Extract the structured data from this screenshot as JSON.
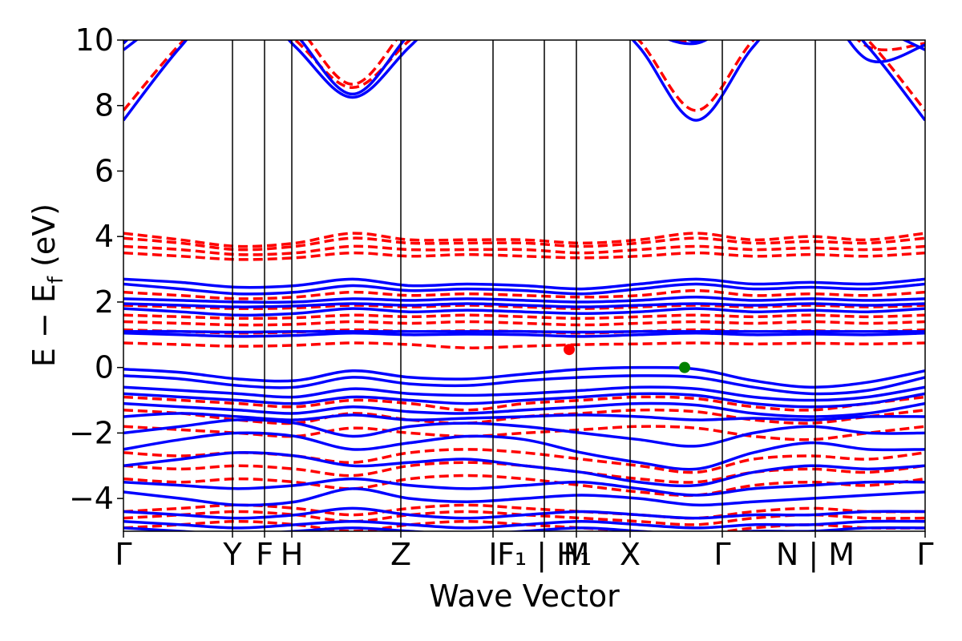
{
  "chart_data": {
    "type": "line",
    "title": "",
    "xlabel": "Wave Vector",
    "ylabel": "E − E_f (eV)",
    "ylabel_main": "E − E",
    "ylabel_sub": "f",
    "ylabel_unit": " (eV)",
    "ylim": [
      -5,
      10
    ],
    "yticks": [
      -4,
      -2,
      0,
      2,
      4,
      6,
      8,
      10
    ],
    "ytick_labels": [
      "−4",
      "−2",
      "0",
      "2",
      "4",
      "6",
      "8",
      "10"
    ],
    "grid": false,
    "legend": "none",
    "kpoints": [
      {
        "label": "Γ",
        "x": 0.0
      },
      {
        "label": "Y",
        "x": 0.136
      },
      {
        "label": "F",
        "x": 0.176
      },
      {
        "label": "H",
        "x": 0.21
      },
      {
        "label": "Z",
        "x": 0.346
      },
      {
        "label": "I",
        "x": 0.461
      },
      {
        "label": "F₁ | H₁",
        "x": 0.525
      },
      {
        "label": "M",
        "x": 0.565
      },
      {
        "label": "X",
        "x": 0.632
      },
      {
        "label": "Γ",
        "x": 0.747
      },
      {
        "label": "N | M",
        "x": 0.863
      },
      {
        "label": "Γ",
        "x": 1.0
      }
    ],
    "series": [
      {
        "color": "#0000ff",
        "style": "solid",
        "bands": [
          {
            "y": [
              7.55,
              9.8,
              11.5,
              9.8,
              8.25,
              9.8,
              11.5,
              12.0,
              11.5,
              9.8,
              7.55,
              9.8,
              11.5,
              9.8,
              7.55
            ]
          },
          {
            "y": [
              9.7,
              11.0,
              12.0,
              10.2,
              8.35,
              10.2,
              12.0,
              12.0,
              12.0,
              10.5,
              9.9,
              11.0,
              11.0,
              10.5,
              9.7
            ]
          },
          {
            "y": [
              9.9,
              11.5,
              12.0,
              11.0,
              10.2,
              11.5,
              12.0,
              12.0,
              12.0,
              11.5,
              9.95,
              11.5,
              11.5,
              9.4,
              9.85
            ]
          },
          {
            "y": [
              2.7,
              2.6,
              2.45,
              2.5,
              2.7,
              2.5,
              2.55,
              2.5,
              2.4,
              2.55,
              2.7,
              2.55,
              2.6,
              2.55,
              2.7
            ]
          },
          {
            "y": [
              2.55,
              2.4,
              2.25,
              2.3,
              2.5,
              2.35,
              2.4,
              2.35,
              2.25,
              2.4,
              2.55,
              2.4,
              2.45,
              2.4,
              2.55
            ]
          },
          {
            "y": [
              2.1,
              2.05,
              2.0,
              2.0,
              2.1,
              2.05,
              2.1,
              2.05,
              2.0,
              2.05,
              2.15,
              2.05,
              2.1,
              2.05,
              2.1
            ]
          },
          {
            "y": [
              1.95,
              1.9,
              1.85,
              1.88,
              1.95,
              1.9,
              1.95,
              1.9,
              1.85,
              1.9,
              1.95,
              1.9,
              1.95,
              1.9,
              1.95
            ]
          },
          {
            "y": [
              1.8,
              1.7,
              1.6,
              1.65,
              1.8,
              1.7,
              1.75,
              1.7,
              1.65,
              1.7,
              1.8,
              1.7,
              1.75,
              1.7,
              1.8
            ]
          },
          {
            "y": [
              1.1,
              1.1,
              1.08,
              1.1,
              1.1,
              1.1,
              1.1,
              1.1,
              1.08,
              1.1,
              1.1,
              1.1,
              1.1,
              1.1,
              1.1
            ]
          },
          {
            "y": [
              1.05,
              1.0,
              0.95,
              0.98,
              1.05,
              1.0,
              1.02,
              1.0,
              0.95,
              1.0,
              1.05,
              1.0,
              1.02,
              1.0,
              1.05
            ]
          },
          {
            "y": [
              -0.05,
              -0.15,
              -0.35,
              -0.4,
              -0.1,
              -0.3,
              -0.35,
              -0.2,
              -0.05,
              0.0,
              -0.05,
              -0.4,
              -0.6,
              -0.45,
              -0.1
            ]
          },
          {
            "y": [
              -0.25,
              -0.35,
              -0.55,
              -0.6,
              -0.3,
              -0.5,
              -0.55,
              -0.4,
              -0.3,
              -0.25,
              -0.3,
              -0.6,
              -0.8,
              -0.7,
              -0.3
            ]
          },
          {
            "y": [
              -0.6,
              -0.7,
              -0.8,
              -0.9,
              -0.65,
              -0.8,
              -0.85,
              -0.8,
              -0.7,
              -0.6,
              -0.65,
              -0.9,
              -1.0,
              -0.9,
              -0.6
            ]
          },
          {
            "y": [
              -0.8,
              -0.9,
              -1.0,
              -1.1,
              -0.9,
              -1.0,
              -1.1,
              -1.0,
              -0.9,
              -0.8,
              -0.85,
              -1.1,
              -1.2,
              -1.1,
              -0.8
            ]
          },
          {
            "y": [
              -1.1,
              -1.2,
              -1.3,
              -1.4,
              -1.2,
              -1.35,
              -1.4,
              -1.3,
              -1.2,
              -1.1,
              -1.15,
              -1.4,
              -1.5,
              -1.4,
              -1.1
            ]
          },
          {
            "y": [
              -1.5,
              -1.4,
              -1.5,
              -1.6,
              -1.45,
              -1.6,
              -1.55,
              -1.5,
              -1.45,
              -1.5,
              -1.6,
              -1.55,
              -1.6,
              -1.5,
              -1.5
            ]
          },
          {
            "y": [
              -2.0,
              -1.8,
              -1.6,
              -1.7,
              -2.1,
              -1.8,
              -1.7,
              -1.8,
              -2.0,
              -2.2,
              -2.4,
              -2.0,
              -1.8,
              -2.0,
              -2.0
            ]
          },
          {
            "y": [
              -2.5,
              -2.2,
              -2.0,
              -2.1,
              -2.5,
              -2.3,
              -2.1,
              -2.2,
              -2.6,
              -2.9,
              -3.1,
              -2.6,
              -2.3,
              -2.5,
              -2.5
            ]
          },
          {
            "y": [
              -3.0,
              -2.8,
              -2.6,
              -2.7,
              -3.0,
              -2.9,
              -2.8,
              -3.0,
              -3.2,
              -3.5,
              -3.6,
              -3.2,
              -3.0,
              -3.1,
              -3.0
            ]
          },
          {
            "y": [
              -3.5,
              -3.6,
              -3.7,
              -3.6,
              -3.4,
              -3.6,
              -3.7,
              -3.6,
              -3.5,
              -3.7,
              -3.9,
              -3.7,
              -3.6,
              -3.5,
              -3.5
            ]
          },
          {
            "y": [
              -3.8,
              -4.0,
              -4.2,
              -4.1,
              -3.7,
              -4.0,
              -4.1,
              -4.0,
              -3.9,
              -4.0,
              -4.2,
              -4.1,
              -4.0,
              -3.9,
              -3.8
            ]
          },
          {
            "y": [
              -4.4,
              -4.5,
              -4.6,
              -4.5,
              -4.3,
              -4.5,
              -4.6,
              -4.5,
              -4.4,
              -4.5,
              -4.6,
              -4.5,
              -4.5,
              -4.4,
              -4.4
            ]
          },
          {
            "y": [
              -4.7,
              -4.8,
              -4.9,
              -4.8,
              -4.7,
              -4.8,
              -4.9,
              -4.8,
              -4.7,
              -4.8,
              -4.9,
              -4.8,
              -4.8,
              -4.7,
              -4.7
            ]
          },
          {
            "y": [
              -4.9,
              -5.0,
              -5.1,
              -5.0,
              -4.9,
              -5.0,
              -5.1,
              -5.0,
              -4.9,
              -5.0,
              -5.1,
              -5.0,
              -5.0,
              -4.9,
              -4.9
            ]
          }
        ]
      },
      {
        "color": "#ff0000",
        "style": "dashed",
        "bands": [
          {
            "y": [
              7.85,
              9.9,
              11.5,
              10.0,
              8.55,
              10.0,
              11.5,
              12.0,
              11.5,
              10.0,
              7.85,
              10.0,
              11.5,
              10.0,
              7.85
            ]
          },
          {
            "y": [
              10.0,
              11.5,
              12.0,
              10.5,
              8.65,
              10.5,
              12.0,
              12.0,
              12.0,
              10.5,
              10.0,
              11.5,
              11.5,
              9.8,
              9.9
            ]
          },
          {
            "y": [
              4.1,
              3.9,
              3.7,
              3.8,
              4.1,
              3.9,
              3.9,
              3.9,
              3.8,
              3.9,
              4.1,
              3.9,
              4.0,
              3.9,
              4.1
            ]
          },
          {
            "y": [
              3.95,
              3.8,
              3.6,
              3.7,
              3.95,
              3.8,
              3.8,
              3.8,
              3.7,
              3.8,
              3.95,
              3.8,
              3.85,
              3.8,
              3.95
            ]
          },
          {
            "y": [
              3.7,
              3.6,
              3.45,
              3.5,
              3.7,
              3.6,
              3.6,
              3.6,
              3.5,
              3.6,
              3.7,
              3.6,
              3.65,
              3.6,
              3.7
            ]
          },
          {
            "y": [
              3.5,
              3.4,
              3.3,
              3.35,
              3.5,
              3.4,
              3.45,
              3.4,
              3.35,
              3.4,
              3.5,
              3.4,
              3.45,
              3.4,
              3.5
            ]
          },
          {
            "y": [
              2.3,
              2.2,
              2.1,
              2.15,
              2.3,
              2.2,
              2.25,
              2.2,
              2.15,
              2.2,
              2.35,
              2.2,
              2.25,
              2.2,
              2.3
            ]
          },
          {
            "y": [
              1.9,
              1.85,
              1.8,
              1.82,
              1.9,
              1.85,
              1.9,
              1.85,
              1.8,
              1.85,
              1.9,
              1.85,
              1.9,
              1.85,
              1.9
            ]
          },
          {
            "y": [
              1.6,
              1.55,
              1.5,
              1.52,
              1.6,
              1.55,
              1.6,
              1.55,
              1.5,
              1.55,
              1.6,
              1.55,
              1.6,
              1.55,
              1.6
            ]
          },
          {
            "y": [
              1.4,
              1.35,
              1.3,
              1.32,
              1.4,
              1.35,
              1.4,
              1.35,
              1.3,
              1.35,
              1.4,
              1.35,
              1.4,
              1.35,
              1.4
            ]
          },
          {
            "y": [
              1.15,
              1.1,
              1.05,
              1.08,
              1.15,
              1.1,
              1.12,
              1.1,
              1.05,
              1.1,
              1.15,
              1.1,
              1.12,
              1.1,
              1.15
            ]
          },
          {
            "y": [
              0.75,
              0.7,
              0.65,
              0.68,
              0.75,
              0.7,
              0.6,
              0.65,
              0.7,
              0.72,
              0.75,
              0.72,
              0.74,
              0.72,
              0.75
            ]
          },
          {
            "y": [
              -0.9,
              -1.0,
              -1.1,
              -1.2,
              -1.0,
              -1.1,
              -1.3,
              -1.1,
              -1.0,
              -0.9,
              -0.95,
              -1.2,
              -1.3,
              -1.1,
              -0.9
            ]
          },
          {
            "y": [
              -1.3,
              -1.4,
              -1.6,
              -1.7,
              -1.4,
              -1.6,
              -1.7,
              -1.5,
              -1.4,
              -1.3,
              -1.35,
              -1.6,
              -1.7,
              -1.5,
              -1.3
            ]
          },
          {
            "y": [
              -1.8,
              -1.9,
              -2.0,
              -2.1,
              -1.85,
              -2.0,
              -2.1,
              -2.0,
              -1.9,
              -1.8,
              -1.85,
              -2.1,
              -2.2,
              -2.0,
              -1.8
            ]
          },
          {
            "y": [
              -2.6,
              -2.7,
              -2.6,
              -2.7,
              -2.9,
              -2.6,
              -2.5,
              -2.6,
              -2.8,
              -3.0,
              -3.2,
              -2.8,
              -2.7,
              -2.8,
              -2.6
            ]
          },
          {
            "y": [
              -3.0,
              -3.1,
              -3.0,
              -3.1,
              -3.3,
              -3.0,
              -2.9,
              -3.0,
              -3.2,
              -3.4,
              -3.5,
              -3.2,
              -3.1,
              -3.2,
              -3.0
            ]
          },
          {
            "y": [
              -3.4,
              -3.5,
              -3.4,
              -3.5,
              -3.7,
              -3.4,
              -3.3,
              -3.4,
              -3.6,
              -3.8,
              -3.9,
              -3.6,
              -3.5,
              -3.6,
              -3.4
            ]
          },
          {
            "y": [
              -4.4,
              -4.3,
              -4.2,
              -4.3,
              -4.5,
              -4.3,
              -4.2,
              -4.3,
              -4.4,
              -4.5,
              -4.6,
              -4.4,
              -4.3,
              -4.4,
              -4.4
            ]
          },
          {
            "y": [
              -4.6,
              -4.5,
              -4.4,
              -4.5,
              -4.7,
              -4.5,
              -4.4,
              -4.5,
              -4.6,
              -4.7,
              -4.8,
              -4.6,
              -4.5,
              -4.6,
              -4.6
            ]
          },
          {
            "y": [
              -4.9,
              -4.8,
              -4.7,
              -4.8,
              -5.0,
              -4.8,
              -4.7,
              -4.8,
              -4.9,
              -5.0,
              -5.1,
              -4.9,
              -4.8,
              -4.9,
              -4.9
            ]
          }
        ]
      }
    ],
    "markers": [
      {
        "x": 0.556,
        "y": 0.55,
        "color": "#ff0000"
      },
      {
        "x": 0.7,
        "y": 0.0,
        "color": "#008000"
      }
    ]
  }
}
